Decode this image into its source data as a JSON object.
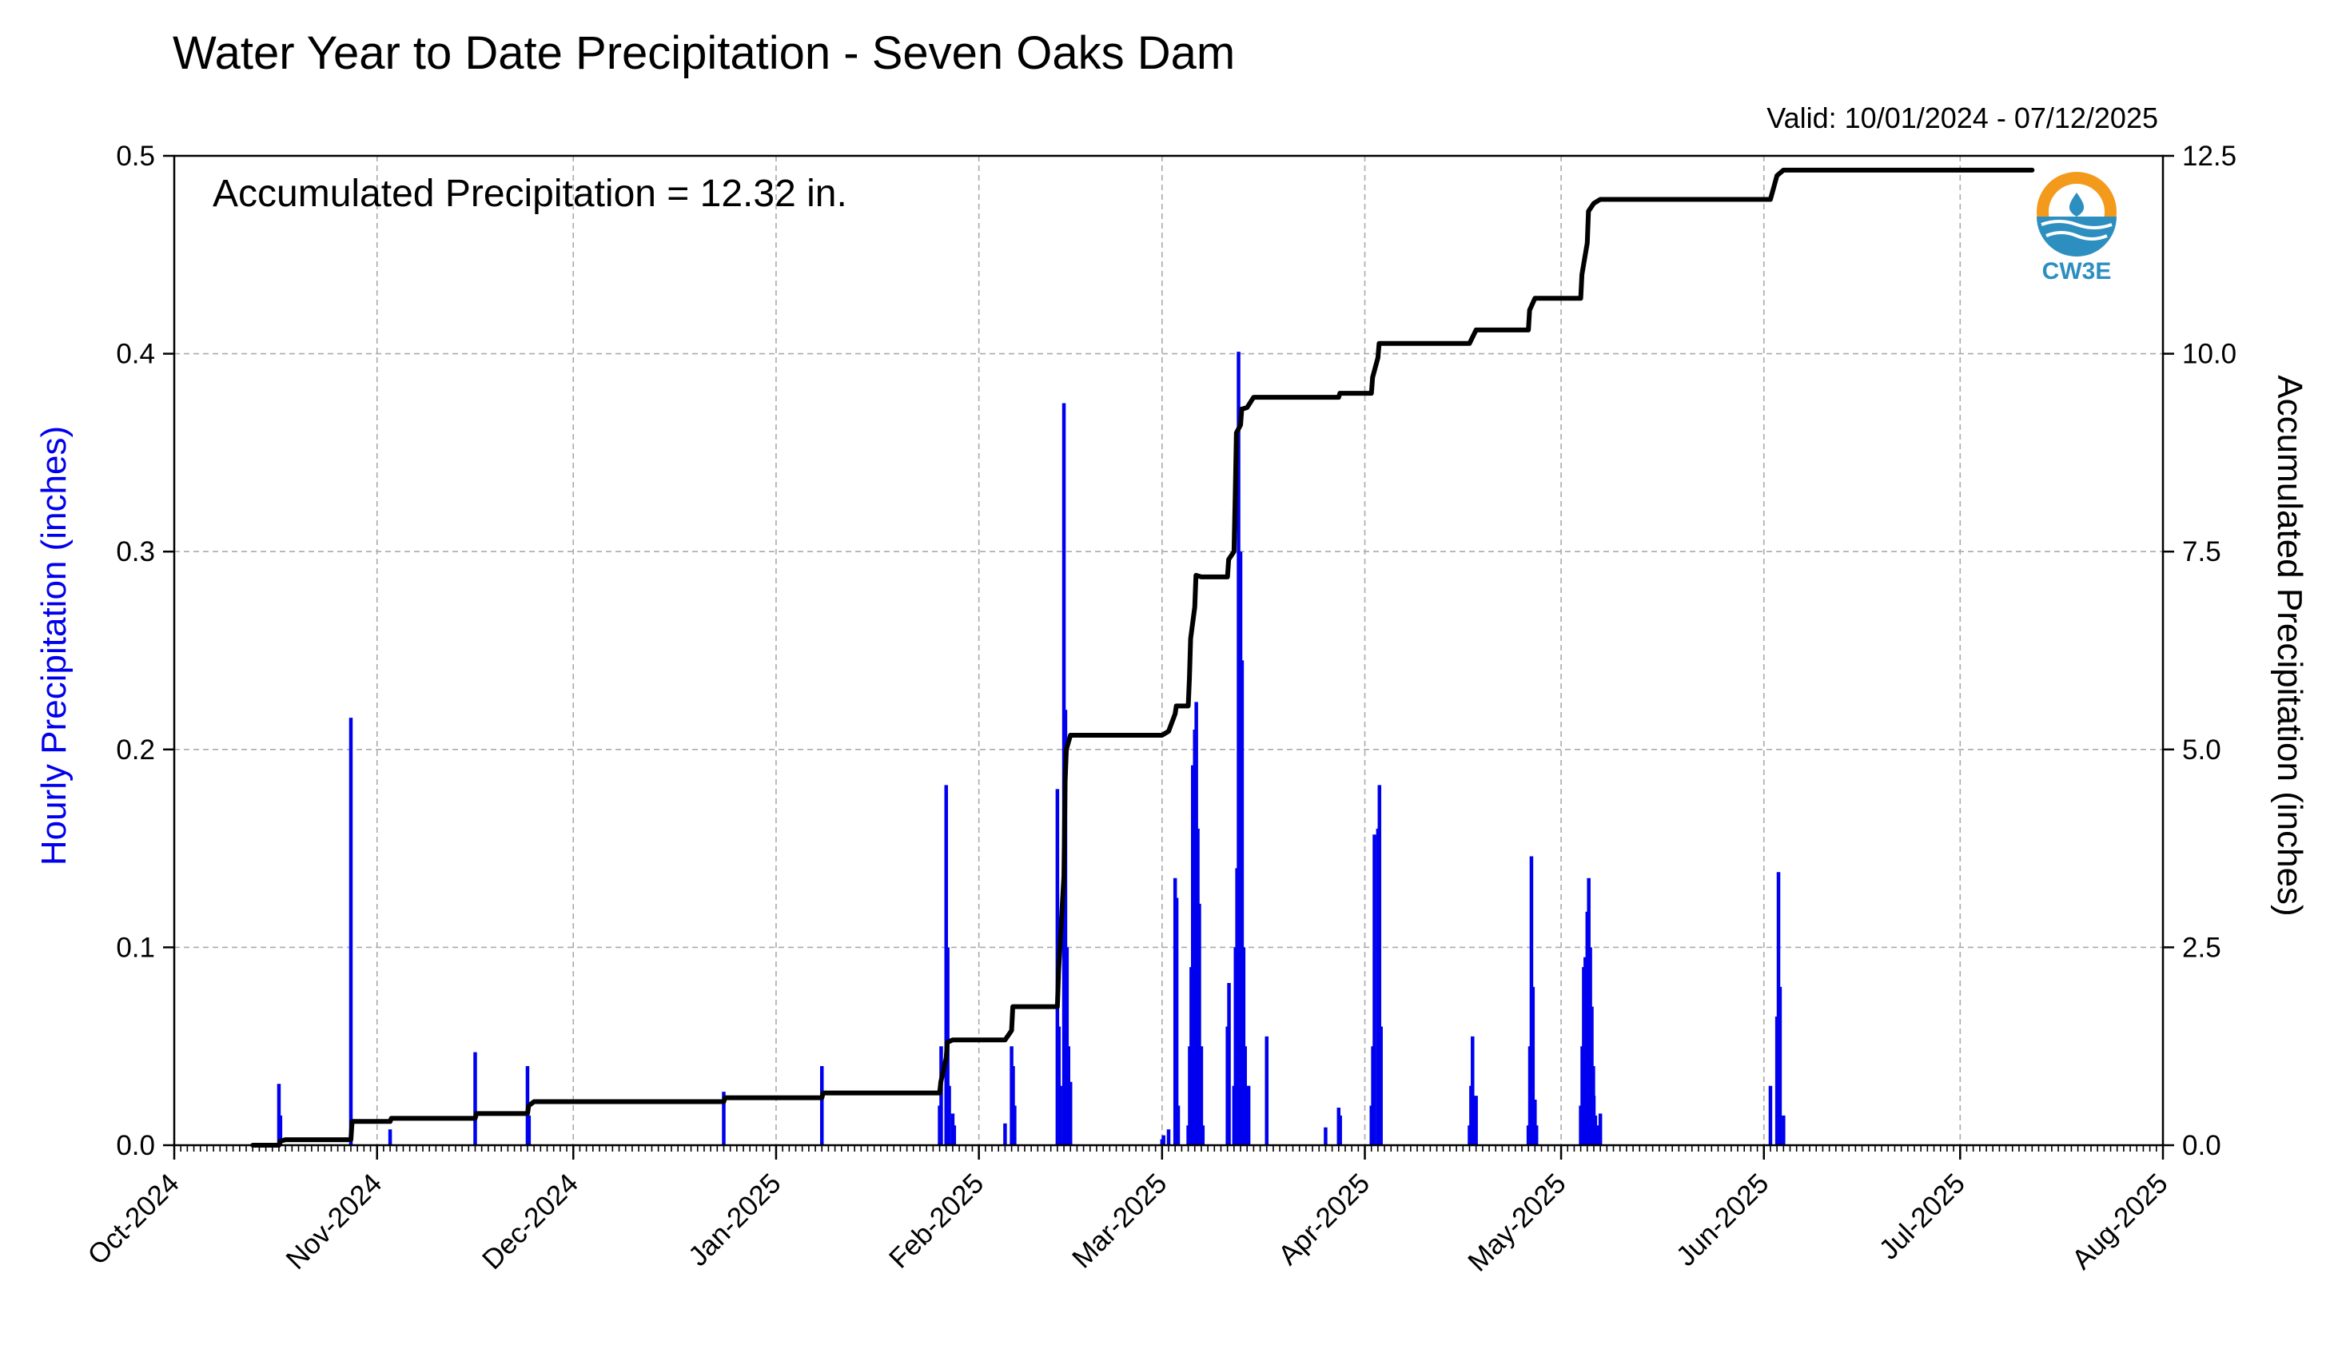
{
  "header": {
    "title": "Water Year to Date Precipitation - Seven Oaks Dam",
    "valid": "Valid: 10/01/2024 - 07/12/2025"
  },
  "annotation": "Accumulated Precipitation = 12.32 in.",
  "logo": {
    "text": "CW3E",
    "icon": "cw3e-water-drop-logo-icon"
  },
  "colors": {
    "hourly": "#0000ee",
    "accumulated": "#000000",
    "grid": "#aaaaaa",
    "logo_orange": "#f39a1d",
    "logo_blue": "#2d8fc0"
  },
  "chart_data": {
    "type": "bar",
    "title": "Water Year to Date Precipitation - Seven Oaks Dam",
    "ylabel": "Hourly Precipitation (inches)",
    "y2label": "Accumulated Precipitation (inches)",
    "xlim": [
      "2024-10-01",
      "2025-08-01"
    ],
    "ylim": [
      0,
      0.5
    ],
    "y2lim": [
      0,
      12.5
    ],
    "grid": true,
    "x_ticks": [
      {
        "date": "2024-10-01",
        "label": "Oct-2024"
      },
      {
        "date": "2024-11-01",
        "label": "Nov-2024"
      },
      {
        "date": "2024-12-01",
        "label": "Dec-2024"
      },
      {
        "date": "2025-01-01",
        "label": "Jan-2025"
      },
      {
        "date": "2025-02-01",
        "label": "Feb-2025"
      },
      {
        "date": "2025-03-01",
        "label": "Mar-2025"
      },
      {
        "date": "2025-04-01",
        "label": "Apr-2025"
      },
      {
        "date": "2025-05-01",
        "label": "May-2025"
      },
      {
        "date": "2025-06-01",
        "label": "Jun-2025"
      },
      {
        "date": "2025-07-01",
        "label": "Jul-2025"
      },
      {
        "date": "2025-08-01",
        "label": "Aug-2025"
      }
    ],
    "y_ticks": [
      "0.0",
      "0.1",
      "0.2",
      "0.3",
      "0.4",
      "0.5"
    ],
    "y2_ticks": [
      "0.0",
      "2.5",
      "5.0",
      "7.5",
      "10.0",
      "12.5"
    ],
    "series": [
      {
        "name": "Hourly Precipitation",
        "kind": "bar",
        "points": [
          [
            "2024-10-17",
            0.031
          ],
          [
            "2024-10-17",
            0.015
          ],
          [
            "2024-10-28",
            0.216
          ],
          [
            "2024-11-03",
            0.008
          ],
          [
            "2024-11-16",
            0.047
          ],
          [
            "2024-11-24",
            0.04
          ],
          [
            "2024-11-24",
            0.015
          ],
          [
            "2024-12-24",
            0.027
          ],
          [
            "2025-01-08",
            0.04
          ],
          [
            "2025-01-26",
            0.02
          ],
          [
            "2025-01-26",
            0.05
          ],
          [
            "2025-01-27",
            0.182
          ],
          [
            "2025-01-27",
            0.1
          ],
          [
            "2025-01-27",
            0.03
          ],
          [
            "2025-01-28",
            0.016
          ],
          [
            "2025-01-28",
            0.01
          ],
          [
            "2025-02-05",
            0.011
          ],
          [
            "2025-02-06",
            0.05
          ],
          [
            "2025-02-06",
            0.04
          ],
          [
            "2025-02-06",
            0.02
          ],
          [
            "2025-02-13",
            0.18
          ],
          [
            "2025-02-13",
            0.06
          ],
          [
            "2025-02-13",
            0.03
          ],
          [
            "2025-02-14",
            0.375
          ],
          [
            "2025-02-14",
            0.22
          ],
          [
            "2025-02-14",
            0.1
          ],
          [
            "2025-02-14",
            0.05
          ],
          [
            "2025-02-15",
            0.032
          ],
          [
            "2025-03-01",
            0.003
          ],
          [
            "2025-03-01",
            0.005
          ],
          [
            "2025-03-02",
            0.008
          ],
          [
            "2025-03-03",
            0.135
          ],
          [
            "2025-03-03",
            0.125
          ],
          [
            "2025-03-03",
            0.02
          ],
          [
            "2025-03-05",
            0.01
          ],
          [
            "2025-03-05",
            0.05
          ],
          [
            "2025-03-05",
            0.09
          ],
          [
            "2025-03-05",
            0.192
          ],
          [
            "2025-03-06",
            0.21
          ],
          [
            "2025-03-06",
            0.224
          ],
          [
            "2025-03-06",
            0.16
          ],
          [
            "2025-03-06",
            0.122
          ],
          [
            "2025-03-07",
            0.05
          ],
          [
            "2025-03-07",
            0.01
          ],
          [
            "2025-03-11",
            0.06
          ],
          [
            "2025-03-11",
            0.082
          ],
          [
            "2025-03-12",
            0.03
          ],
          [
            "2025-03-12",
            0.1
          ],
          [
            "2025-03-12",
            0.14
          ],
          [
            "2025-03-12",
            0.401
          ],
          [
            "2025-03-13",
            0.3
          ],
          [
            "2025-03-13",
            0.245
          ],
          [
            "2025-03-13",
            0.1
          ],
          [
            "2025-03-13",
            0.05
          ],
          [
            "2025-03-14",
            0.03
          ],
          [
            "2025-03-14",
            0.03
          ],
          [
            "2025-03-17",
            0.055
          ],
          [
            "2025-03-26",
            0.009
          ],
          [
            "2025-03-28",
            0.019
          ],
          [
            "2025-03-28",
            0.015
          ],
          [
            "2025-04-02",
            0.02
          ],
          [
            "2025-04-02",
            0.05
          ],
          [
            "2025-04-02",
            0.157
          ],
          [
            "2025-04-03",
            0.16
          ],
          [
            "2025-04-03",
            0.182
          ],
          [
            "2025-04-03",
            0.06
          ],
          [
            "2025-04-17",
            0.01
          ],
          [
            "2025-04-17",
            0.03
          ],
          [
            "2025-04-17",
            0.055
          ],
          [
            "2025-04-18",
            0.025
          ],
          [
            "2025-04-26",
            0.01
          ],
          [
            "2025-04-26",
            0.05
          ],
          [
            "2025-04-26",
            0.146
          ],
          [
            "2025-04-26",
            0.08
          ],
          [
            "2025-04-27",
            0.023
          ],
          [
            "2025-04-27",
            0.01
          ],
          [
            "2025-05-04",
            0.02
          ],
          [
            "2025-05-04",
            0.05
          ],
          [
            "2025-05-04",
            0.09
          ],
          [
            "2025-05-04",
            0.095
          ],
          [
            "2025-05-05",
            0.118
          ],
          [
            "2025-05-05",
            0.135
          ],
          [
            "2025-05-05",
            0.1
          ],
          [
            "2025-05-05",
            0.07
          ],
          [
            "2025-05-05",
            0.04
          ],
          [
            "2025-05-06",
            0.025
          ],
          [
            "2025-05-06",
            0.015
          ],
          [
            "2025-05-06",
            0.01
          ],
          [
            "2025-05-07",
            0.016
          ],
          [
            "2025-06-02",
            0.03
          ],
          [
            "2025-06-03",
            0.065
          ],
          [
            "2025-06-03",
            0.138
          ],
          [
            "2025-06-03",
            0.08
          ],
          [
            "2025-06-04",
            0.015
          ]
        ]
      },
      {
        "name": "Accumulated Precipitation",
        "kind": "line",
        "points": [
          [
            "2024-10-13",
            0.0
          ],
          [
            "2024-10-17",
            0.0
          ],
          [
            "2024-10-17",
            0.05
          ],
          [
            "2024-10-18",
            0.07
          ],
          [
            "2024-10-28",
            0.07
          ],
          [
            "2024-10-28",
            0.3
          ],
          [
            "2024-11-03",
            0.3
          ],
          [
            "2024-11-03",
            0.34
          ],
          [
            "2024-11-16",
            0.34
          ],
          [
            "2024-11-16",
            0.4
          ],
          [
            "2024-11-24",
            0.4
          ],
          [
            "2024-11-24",
            0.5
          ],
          [
            "2024-11-25",
            0.55
          ],
          [
            "2024-12-24",
            0.55
          ],
          [
            "2024-12-24",
            0.6
          ],
          [
            "2025-01-08",
            0.6
          ],
          [
            "2025-01-08",
            0.66
          ],
          [
            "2025-01-26",
            0.66
          ],
          [
            "2025-01-26",
            0.8
          ],
          [
            "2025-01-27",
            1.1
          ],
          [
            "2025-01-27",
            1.3
          ],
          [
            "2025-01-28",
            1.33
          ],
          [
            "2025-02-05",
            1.33
          ],
          [
            "2025-02-06",
            1.45
          ],
          [
            "2025-02-06",
            1.75
          ],
          [
            "2025-02-13",
            1.75
          ],
          [
            "2025-02-13",
            2.2
          ],
          [
            "2025-02-14",
            3.4
          ],
          [
            "2025-02-14",
            4.6
          ],
          [
            "2025-02-14",
            5.0
          ],
          [
            "2025-02-15",
            5.18
          ],
          [
            "2025-03-01",
            5.18
          ],
          [
            "2025-03-02",
            5.23
          ],
          [
            "2025-03-03",
            5.45
          ],
          [
            "2025-03-03",
            5.55
          ],
          [
            "2025-03-05",
            5.55
          ],
          [
            "2025-03-05",
            5.9
          ],
          [
            "2025-03-05",
            6.4
          ],
          [
            "2025-03-06",
            6.8
          ],
          [
            "2025-03-06",
            7.2
          ],
          [
            "2025-03-07",
            7.18
          ],
          [
            "2025-03-11",
            7.18
          ],
          [
            "2025-03-11",
            7.4
          ],
          [
            "2025-03-12",
            7.5
          ],
          [
            "2025-03-12",
            8.2
          ],
          [
            "2025-03-12",
            9.0
          ],
          [
            "2025-03-13",
            9.1
          ],
          [
            "2025-03-13",
            9.3
          ],
          [
            "2025-03-14",
            9.32
          ],
          [
            "2025-03-15",
            9.45
          ],
          [
            "2025-03-28",
            9.45
          ],
          [
            "2025-03-28",
            9.5
          ],
          [
            "2025-04-02",
            9.5
          ],
          [
            "2025-04-02",
            9.7
          ],
          [
            "2025-04-03",
            9.95
          ],
          [
            "2025-04-03",
            10.13
          ],
          [
            "2025-04-17",
            10.13
          ],
          [
            "2025-04-18",
            10.3
          ],
          [
            "2025-04-26",
            10.3
          ],
          [
            "2025-04-26",
            10.55
          ],
          [
            "2025-04-27",
            10.7
          ],
          [
            "2025-05-04",
            10.7
          ],
          [
            "2025-05-04",
            11.0
          ],
          [
            "2025-05-05",
            11.4
          ],
          [
            "2025-05-05",
            11.8
          ],
          [
            "2025-05-06",
            11.9
          ],
          [
            "2025-05-07",
            11.95
          ],
          [
            "2025-06-02",
            11.95
          ],
          [
            "2025-06-03",
            12.25
          ],
          [
            "2025-06-04",
            12.32
          ],
          [
            "2025-07-12",
            12.32
          ]
        ]
      }
    ]
  }
}
